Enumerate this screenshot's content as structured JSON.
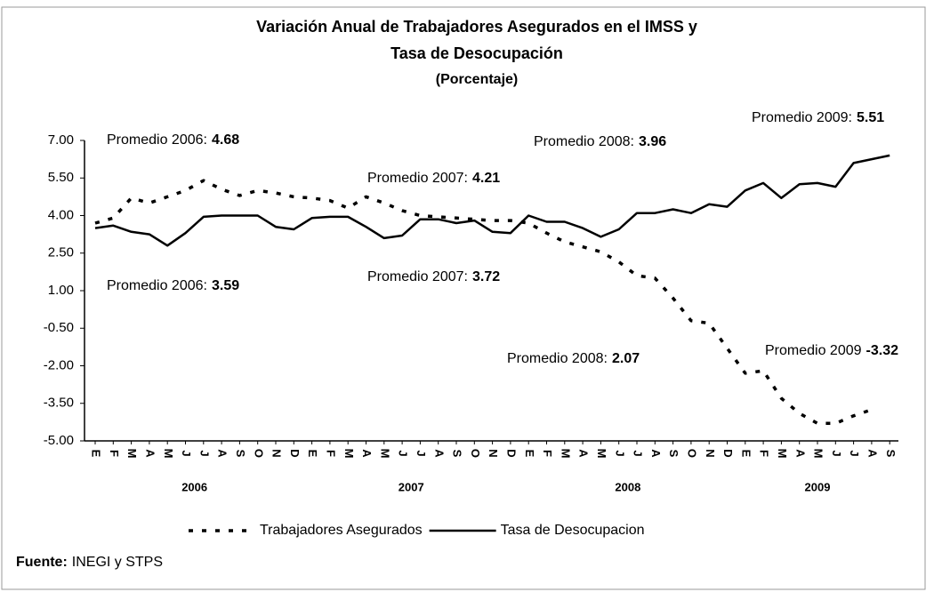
{
  "chart_data": {
    "type": "line",
    "title": [
      "Variación Anual de Trabajadores Asegurados en el IMSS y",
      "Tasa de Desocupación"
    ],
    "subtitle": "(Porcentaje)",
    "categories": [
      "E",
      "F",
      "M",
      "A",
      "M",
      "J",
      "J",
      "A",
      "S",
      "O",
      "N",
      "D",
      "E",
      "F",
      "M",
      "A",
      "M",
      "J",
      "J",
      "A",
      "S",
      "O",
      "N",
      "D",
      "E",
      "F",
      "M",
      "A",
      "M",
      "J",
      "J",
      "A",
      "S",
      "O",
      "N",
      "D",
      "E",
      "F",
      "M",
      "A",
      "M",
      "J",
      "J",
      "A",
      "S"
    ],
    "x_groups": [
      "2006",
      "2007",
      "2008",
      "2009"
    ],
    "series": [
      {
        "name": "Trabajadores Asegurados",
        "color": "#000000",
        "style": "dashed",
        "values": [
          3.7,
          3.9,
          4.7,
          4.5,
          4.75,
          5.0,
          5.4,
          5.05,
          4.8,
          5.0,
          4.9,
          4.75,
          4.7,
          4.6,
          4.3,
          4.75,
          4.5,
          4.2,
          4.0,
          3.95,
          3.9,
          3.85,
          3.8,
          3.8,
          3.7,
          3.3,
          2.95,
          2.75,
          2.55,
          2.15,
          1.6,
          1.5,
          0.7,
          -0.2,
          -0.3,
          -1.3,
          -2.3,
          -2.2,
          -3.3,
          -3.9,
          -4.3,
          -4.3,
          -4.0,
          -3.75,
          null
        ]
      },
      {
        "name": "Tasa de Desocupacion",
        "color": "#000000",
        "style": "solid",
        "values": [
          3.5,
          3.6,
          3.35,
          3.25,
          2.8,
          3.3,
          3.95,
          4.0,
          4.0,
          4.0,
          3.55,
          3.45,
          3.9,
          3.95,
          3.95,
          3.55,
          3.1,
          3.2,
          3.85,
          3.85,
          3.7,
          3.8,
          3.35,
          3.3,
          4.0,
          3.75,
          3.75,
          3.5,
          3.15,
          3.45,
          4.1,
          4.1,
          4.25,
          4.1,
          4.45,
          4.35,
          5.0,
          5.3,
          4.7,
          5.25,
          5.3,
          5.15,
          6.1,
          6.25,
          6.4
        ]
      }
    ],
    "ylim": [
      -5,
      7
    ],
    "yticks": [
      {
        "value": -5,
        "label": "-5.00"
      },
      {
        "value": -3.5,
        "label": "-3.50"
      },
      {
        "value": -2,
        "label": "-2.00"
      },
      {
        "value": -0.5,
        "label": "-0.50"
      },
      {
        "value": 1,
        "label": "1.00"
      },
      {
        "value": 2.5,
        "label": "2.50"
      },
      {
        "value": 4,
        "label": "4.00"
      },
      {
        "value": 5.5,
        "label": "5.50"
      },
      {
        "value": 7,
        "label": "7.00"
      }
    ],
    "annotations": [
      {
        "text": "Promedio 2006:",
        "value": 4.68
      },
      {
        "text": "Promedio 2007:",
        "value": 4.21
      },
      {
        "text": "Promedio 2008:",
        "value": 3.96
      },
      {
        "text": "Promedio 2009:",
        "value": 5.51
      },
      {
        "text": "Promedio 2006:",
        "value": 3.59
      },
      {
        "text": "Promedio 2007:",
        "value": 3.72
      },
      {
        "text": "Promedio 2008:",
        "value": 2.07
      },
      {
        "text": "Promedio 2009",
        "value": -3.32
      }
    ],
    "source": {
      "label": "Fuente:",
      "text": "INEGI y STPS"
    }
  }
}
